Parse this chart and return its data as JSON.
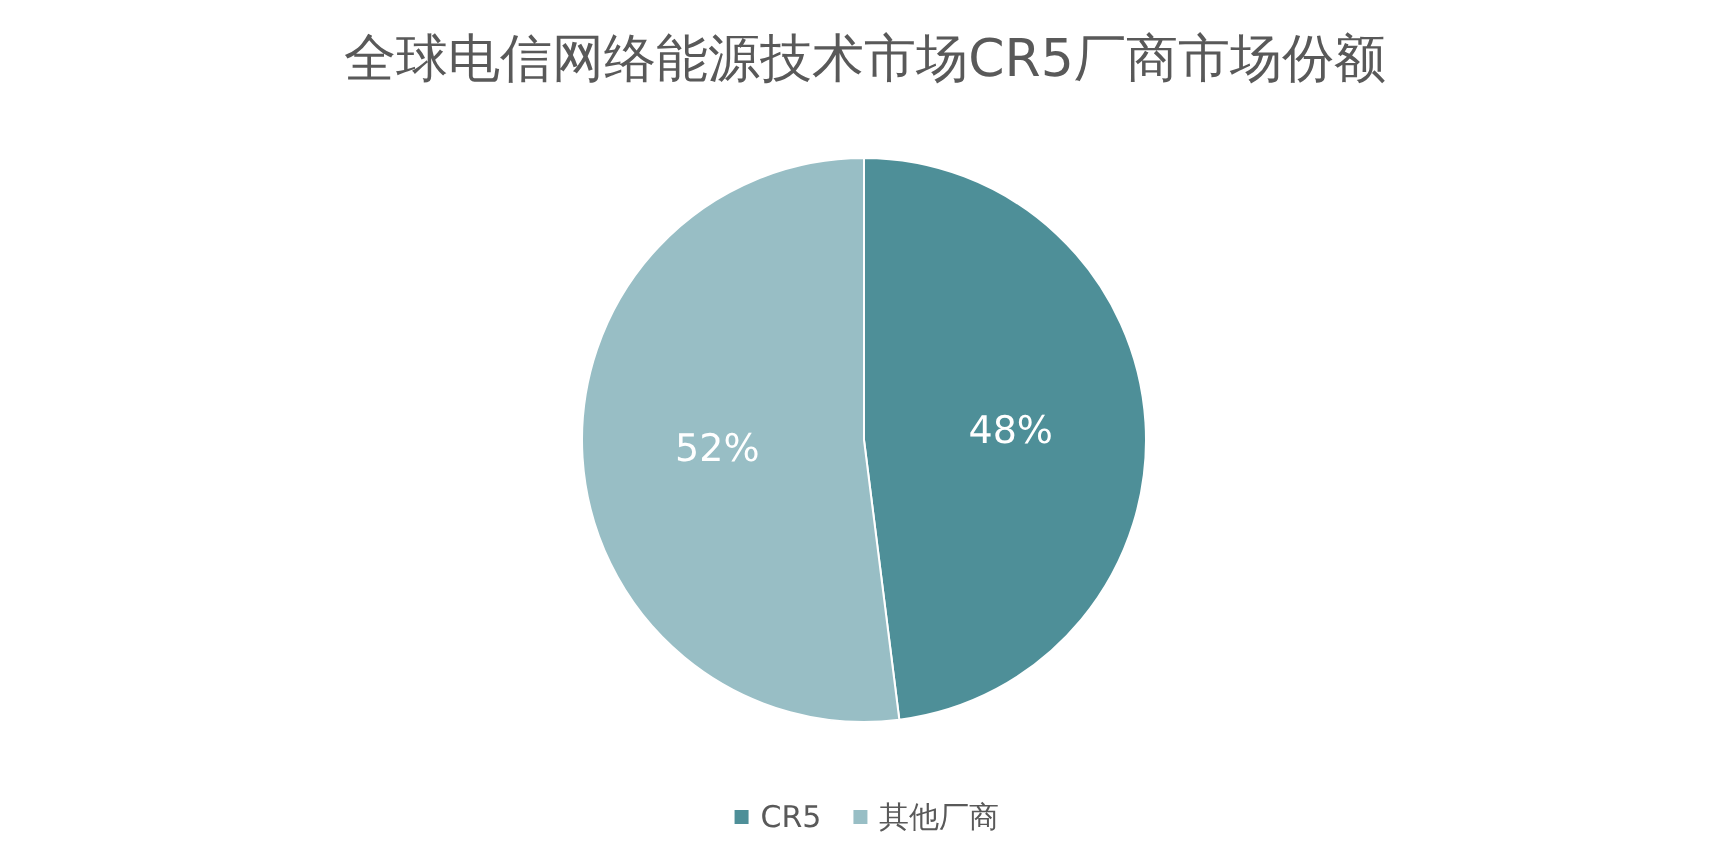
{
  "chart_data": {
    "type": "pie",
    "title": "全球电信网络能源技术市场CR5厂商市场份额",
    "categories": [
      "CR5",
      "其他厂商"
    ],
    "values": [
      48,
      52
    ],
    "colors": [
      "#4e8f98",
      "#98bec5"
    ],
    "value_labels": [
      "48%",
      "52%"
    ],
    "legend": "bottom"
  }
}
